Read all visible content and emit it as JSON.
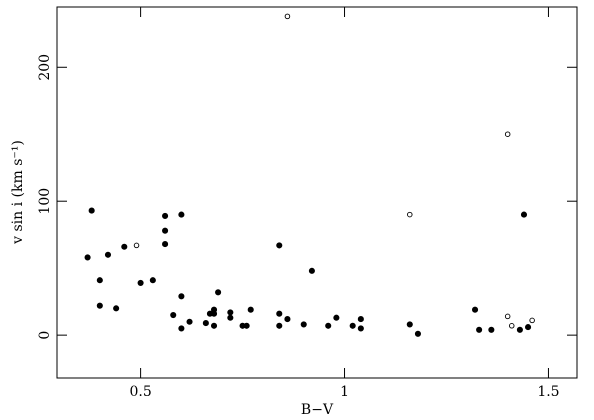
{
  "chart_data": {
    "type": "scatter",
    "xlabel": "B−V",
    "ylabel": "v sin i (km s⁻¹)",
    "xlim": [
      0.295,
      1.57
    ],
    "ylim": [
      -32,
      245
    ],
    "xticks": [
      0.5,
      1,
      1.5
    ],
    "yticks": [
      0,
      100,
      200
    ],
    "series": [
      {
        "name": "filled",
        "color": "#000000",
        "marker": "filled",
        "x": [
          0.37,
          0.38,
          0.4,
          0.4,
          0.42,
          0.44,
          0.46,
          0.5,
          0.53,
          0.56,
          0.56,
          0.56,
          0.6,
          0.6,
          0.58,
          0.6,
          0.62,
          0.66,
          0.67,
          0.68,
          0.68,
          0.68,
          0.69,
          0.72,
          0.72,
          0.75,
          0.76,
          0.77,
          0.84,
          0.84,
          0.84,
          0.86,
          0.9,
          0.92,
          0.96,
          0.98,
          1.02,
          1.04,
          1.04,
          1.16,
          1.18,
          1.32,
          1.33,
          1.36,
          1.43,
          1.45,
          1.44
        ],
        "values": [
          58,
          93,
          41,
          22,
          60,
          20,
          66,
          39,
          41,
          89,
          78,
          68,
          90,
          29,
          15,
          5,
          10,
          9,
          16,
          16,
          19,
          7,
          32,
          17,
          13,
          7,
          7,
          19,
          67,
          16,
          7,
          12,
          8,
          48,
          7,
          13,
          7,
          12,
          5,
          8,
          1,
          19,
          4,
          4,
          4,
          6,
          90
        ]
      },
      {
        "name": "open",
        "color": "#000000",
        "marker": "open",
        "x": [
          0.49,
          0.86,
          1.16,
          1.4,
          1.4,
          1.41,
          1.46
        ],
        "values": [
          67,
          238,
          90,
          150,
          14,
          7,
          11
        ]
      }
    ]
  }
}
